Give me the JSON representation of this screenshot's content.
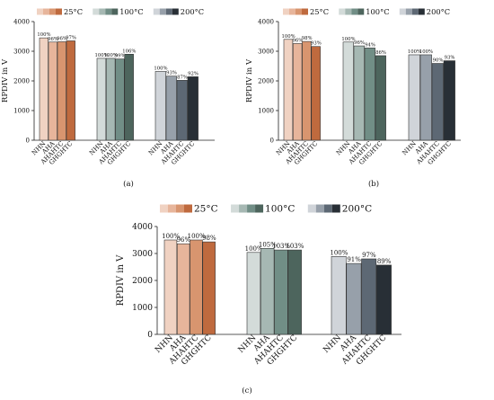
{
  "chart_data": [
    {
      "panel": "(a)",
      "type": "bar",
      "ylabel": "RPDIV in V",
      "ylim": [
        0,
        4000
      ],
      "yticks": [
        0,
        1000,
        2000,
        3000,
        4000
      ],
      "grid": false,
      "legend_placement": "top",
      "legend": [
        "25°C",
        "100°C",
        "200°C"
      ],
      "categories": [
        "NHN",
        "AHA",
        "AHAHTC",
        "GHGHTC"
      ],
      "series": [
        {
          "name": "25°C",
          "values": [
            3450,
            3310,
            3320,
            3350
          ],
          "labels": [
            "100%",
            "96%",
            "96%",
            "97%"
          ]
        },
        {
          "name": "100°C",
          "values": [
            2760,
            2760,
            2740,
            2900
          ],
          "labels": [
            "100%",
            "100%",
            "99%",
            "106%"
          ]
        },
        {
          "name": "200°C",
          "values": [
            2320,
            2160,
            2020,
            2140
          ],
          "labels": [
            "100%",
            "93%",
            "87%",
            "92%"
          ]
        }
      ]
    },
    {
      "panel": "(b)",
      "type": "bar",
      "ylabel": "RPDIV in V",
      "ylim": [
        0,
        4000
      ],
      "yticks": [
        0,
        1000,
        2000,
        3000,
        4000
      ],
      "grid": false,
      "legend_placement": "top",
      "legend": [
        "25°C",
        "100°C",
        "200°C"
      ],
      "categories": [
        "NHN",
        "AHA",
        "AHAHTC",
        "GHGHTC"
      ],
      "series": [
        {
          "name": "25°C",
          "values": [
            3400,
            3260,
            3330,
            3160
          ],
          "labels": [
            "100%",
            "96%",
            "98%",
            "93%"
          ]
        },
        {
          "name": "100°C",
          "values": [
            3310,
            3180,
            3110,
            2850
          ],
          "labels": [
            "100%",
            "96%",
            "94%",
            "86%"
          ]
        },
        {
          "name": "200°C",
          "values": [
            2880,
            2880,
            2590,
            2680
          ],
          "labels": [
            "100%",
            "100%",
            "90%",
            "93%"
          ]
        }
      ]
    },
    {
      "panel": "(c)",
      "type": "bar",
      "ylabel": "RPDIV in V",
      "ylim": [
        0,
        4000
      ],
      "yticks": [
        0,
        1000,
        2000,
        3000,
        4000
      ],
      "grid": false,
      "legend_placement": "top",
      "legend": [
        "25°C",
        "100°C",
        "200°C"
      ],
      "categories": [
        "NHN",
        "AHA",
        "AHAHTC",
        "GHGHTC"
      ],
      "series": [
        {
          "name": "25°C",
          "values": [
            3500,
            3360,
            3500,
            3430
          ],
          "labels": [
            "100%",
            "96%",
            "100%",
            "98%"
          ]
        },
        {
          "name": "100°C",
          "values": [
            3040,
            3190,
            3130,
            3130
          ],
          "labels": [
            "100%",
            "105%",
            "103%",
            "103%"
          ]
        },
        {
          "name": "200°C",
          "values": [
            2890,
            2630,
            2800,
            2570
          ],
          "labels": [
            "100%",
            "91%",
            "97%",
            "89%"
          ]
        }
      ]
    }
  ],
  "colors": {
    "25°C": [
      "#f0d2c2",
      "#e7b59b",
      "#d8956f",
      "#bf6a3e"
    ],
    "100°C": [
      "#d3dbd9",
      "#a6b8b3",
      "#718e86",
      "#4d655d"
    ],
    "200°C": [
      "#d0d4d9",
      "#97a0aa",
      "#5d6874",
      "#282f36"
    ]
  }
}
